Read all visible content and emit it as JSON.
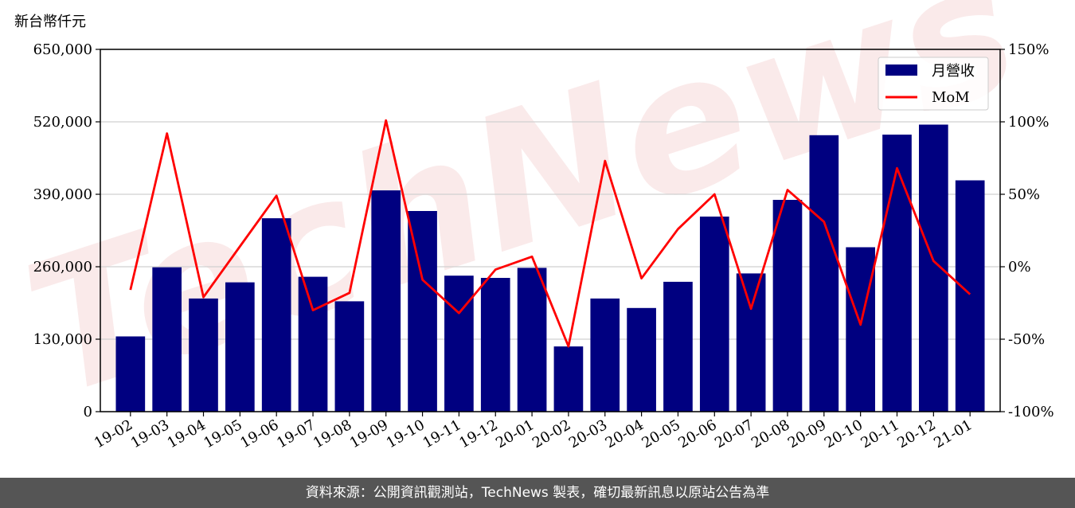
{
  "footer": {
    "source_text": "資料來源：公開資訊觀測站，TechNews 製表，確切最新訊息以原站公告為準"
  },
  "watermark": {
    "text": "TechNews"
  },
  "chart_data": {
    "type": "bar",
    "ylabel": "新台幣仟元",
    "categories": [
      "19-02",
      "19-03",
      "19-04",
      "19-05",
      "19-06",
      "19-07",
      "19-08",
      "19-09",
      "19-10",
      "19-11",
      "19-12",
      "20-01",
      "20-02",
      "20-03",
      "20-04",
      "20-05",
      "20-06",
      "20-07",
      "20-08",
      "20-09",
      "20-10",
      "20-11",
      "20-12",
      "21-01"
    ],
    "series": [
      {
        "name": "月營收",
        "type": "bar",
        "axis": "left",
        "color": "#000080",
        "values": [
          135000,
          259000,
          203000,
          232000,
          347000,
          242000,
          198000,
          397000,
          360000,
          244000,
          240000,
          258000,
          117000,
          203000,
          186000,
          233000,
          350000,
          248000,
          380000,
          496000,
          295000,
          497000,
          515000,
          415000
        ]
      },
      {
        "name": "MoM",
        "type": "line",
        "axis": "right",
        "color": "#ff0000",
        "values": [
          -16,
          92,
          -21,
          14,
          49,
          -30,
          -18,
          101,
          -9,
          -32,
          -2,
          7,
          -55,
          73,
          -8,
          26,
          50,
          -29,
          53,
          31,
          -40,
          68,
          4,
          -19
        ]
      }
    ],
    "y_left": {
      "min": 0,
      "max": 650000,
      "ticks": [
        0,
        130000,
        260000,
        390000,
        520000,
        650000
      ],
      "tick_labels": [
        "0",
        "130,000",
        "260,000",
        "390,000",
        "520,000",
        "650,000"
      ]
    },
    "y_right": {
      "min": -100,
      "max": 150,
      "ticks": [
        -100,
        -50,
        0,
        50,
        100,
        150
      ],
      "tick_labels": [
        "-100%",
        "-50%",
        "0%",
        "50%",
        "100%",
        "150%"
      ]
    },
    "grid": true,
    "legend": "top-right",
    "xtick_rotation": 30
  }
}
